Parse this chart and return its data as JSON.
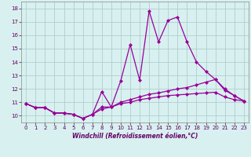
{
  "x": [
    0,
    1,
    2,
    3,
    4,
    5,
    6,
    7,
    8,
    9,
    10,
    11,
    12,
    13,
    14,
    15,
    16,
    17,
    18,
    19,
    20,
    21,
    22,
    23
  ],
  "line1": [
    10.9,
    10.6,
    10.6,
    10.2,
    10.2,
    10.1,
    9.8,
    10.1,
    11.8,
    10.65,
    12.6,
    15.3,
    12.65,
    17.8,
    15.5,
    17.1,
    17.35,
    15.5,
    14.0,
    13.3,
    12.7,
    11.9,
    11.5,
    11.1
  ],
  "line2": [
    10.9,
    10.6,
    10.6,
    10.2,
    10.2,
    10.1,
    9.8,
    10.1,
    10.65,
    10.65,
    11.0,
    11.2,
    11.4,
    11.6,
    11.7,
    11.85,
    12.0,
    12.1,
    12.3,
    12.5,
    12.7,
    12.0,
    11.5,
    11.1
  ],
  "line3": [
    10.9,
    10.6,
    10.6,
    10.2,
    10.2,
    10.1,
    9.8,
    10.1,
    10.5,
    10.65,
    10.9,
    11.0,
    11.2,
    11.3,
    11.4,
    11.5,
    11.55,
    11.6,
    11.65,
    11.7,
    11.75,
    11.4,
    11.2,
    11.1
  ],
  "bg_color": "#d8f0f0",
  "grid_color": "#b0cece",
  "xlabel": "Windchill (Refroidissement éolien,°C)",
  "ylim": [
    9.5,
    18.5
  ],
  "xlim": [
    -0.5,
    23.5
  ],
  "yticks": [
    10,
    11,
    12,
    13,
    14,
    15,
    16,
    17,
    18
  ],
  "xticks": [
    0,
    1,
    2,
    3,
    4,
    5,
    6,
    7,
    8,
    9,
    10,
    11,
    12,
    13,
    14,
    15,
    16,
    17,
    18,
    19,
    20,
    21,
    22,
    23
  ],
  "line_color": "#990099",
  "marker": "D",
  "marker_size": 2.0,
  "linewidth": 0.9,
  "tick_labelsize": 5,
  "xlabel_fontsize": 5.5
}
